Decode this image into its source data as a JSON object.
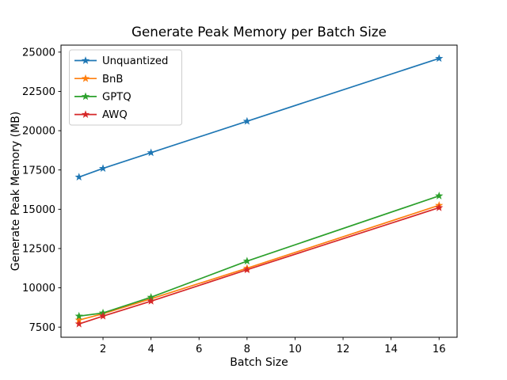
{
  "chart_data": {
    "type": "line",
    "title": "Generate Peak Memory per Batch Size",
    "xlabel": "Batch Size",
    "ylabel": "Generate Peak Memory (MB)",
    "x": [
      1,
      2,
      4,
      8,
      16
    ],
    "series": [
      {
        "name": "Unquantized",
        "color": "#1f77b4",
        "marker": "star",
        "values": [
          17050,
          17600,
          18600,
          20600,
          24600
        ]
      },
      {
        "name": "BnB",
        "color": "#ff7f0e",
        "marker": "star",
        "values": [
          7950,
          8350,
          9300,
          11250,
          15250
        ]
      },
      {
        "name": "GPTQ",
        "color": "#2ca02c",
        "marker": "star",
        "values": [
          8200,
          8400,
          9400,
          11700,
          15850
        ]
      },
      {
        "name": "AWQ",
        "color": "#d62728",
        "marker": "star",
        "values": [
          7700,
          8200,
          9150,
          11150,
          15100
        ]
      }
    ],
    "xticks": [
      2,
      4,
      6,
      8,
      10,
      12,
      14,
      16
    ],
    "yticks": [
      7500,
      10000,
      12500,
      15000,
      17500,
      20000,
      22500,
      25000
    ],
    "xlim": [
      0.25,
      16.75
    ],
    "ylim": [
      6855,
      25445
    ],
    "grid": false,
    "legend_position": "upper-left",
    "axis_color": "#000000",
    "background_color": "#ffffff"
  }
}
